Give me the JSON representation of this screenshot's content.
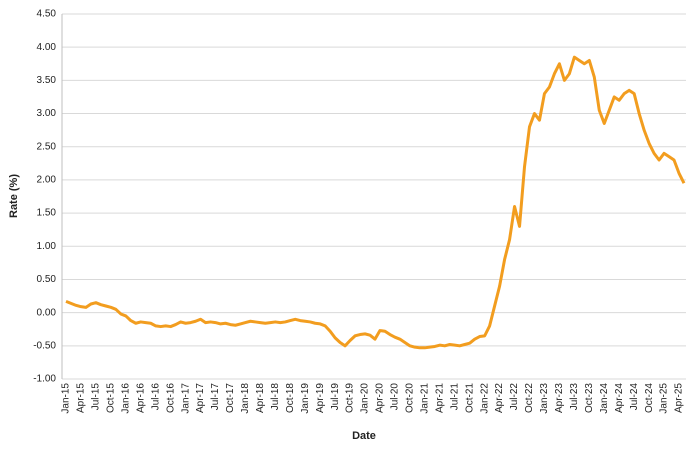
{
  "chart_data": {
    "type": "line",
    "x_label": "Date",
    "y_label": "Rate (%)",
    "categories": [
      "Jan-15",
      null,
      null,
      "Apr-15",
      null,
      null,
      "Jul-15",
      null,
      null,
      "Oct-15",
      null,
      null,
      "Jan-16",
      null,
      null,
      "Apr-16",
      null,
      null,
      "Jul-16",
      null,
      null,
      "Oct-16",
      null,
      null,
      "Jan-17",
      null,
      null,
      "Apr-17",
      null,
      null,
      "Jul-17",
      null,
      null,
      "Oct-17",
      null,
      null,
      "Jan-18",
      null,
      null,
      "Apr-18",
      null,
      null,
      "Jul-18",
      null,
      null,
      "Oct-18",
      null,
      null,
      "Jan-19",
      null,
      null,
      "Apr-19",
      null,
      null,
      "Jul-19",
      null,
      null,
      "Oct-19",
      null,
      null,
      "Jan-20",
      null,
      null,
      "Apr-20",
      null,
      null,
      "Jul-20",
      null,
      null,
      "Oct-20",
      null,
      null,
      "Jan-21",
      null,
      null,
      "Apr-21",
      null,
      null,
      "Jul-21",
      null,
      null,
      "Oct-21",
      null,
      null,
      "Jan-22",
      null,
      null,
      "Apr-22",
      null,
      null,
      "Jul-22",
      null,
      null,
      "Oct-22",
      null,
      null,
      "Jan-23",
      null,
      null,
      "Apr-23",
      null,
      null,
      "Jul-23",
      null,
      null,
      "Oct-23",
      null,
      null,
      "Jan-24",
      null,
      null,
      "Apr-24",
      null,
      null,
      "Jul-24",
      null,
      null,
      "Oct-24",
      null,
      null,
      "Jan-25",
      null,
      null,
      "Apr-25",
      null
    ],
    "values": [
      0.17,
      0.14,
      0.11,
      0.09,
      0.08,
      0.13,
      0.15,
      0.12,
      0.1,
      0.08,
      0.05,
      -0.02,
      -0.05,
      -0.12,
      -0.16,
      -0.14,
      -0.15,
      -0.16,
      -0.2,
      -0.21,
      -0.2,
      -0.21,
      -0.18,
      -0.14,
      -0.16,
      -0.15,
      -0.13,
      -0.1,
      -0.15,
      -0.14,
      -0.15,
      -0.17,
      -0.16,
      -0.18,
      -0.19,
      -0.17,
      -0.15,
      -0.13,
      -0.14,
      -0.15,
      -0.16,
      -0.15,
      -0.14,
      -0.15,
      -0.14,
      -0.12,
      -0.1,
      -0.12,
      -0.13,
      -0.14,
      -0.16,
      -0.17,
      -0.2,
      -0.28,
      -0.38,
      -0.45,
      -0.5,
      -0.42,
      -0.35,
      -0.33,
      -0.32,
      -0.34,
      -0.4,
      -0.27,
      -0.28,
      -0.33,
      -0.37,
      -0.4,
      -0.45,
      -0.5,
      -0.52,
      -0.53,
      -0.53,
      -0.52,
      -0.51,
      -0.49,
      -0.5,
      -0.48,
      -0.49,
      -0.5,
      -0.48,
      -0.46,
      -0.4,
      -0.36,
      -0.35,
      -0.2,
      0.1,
      0.4,
      0.8,
      1.1,
      1.6,
      1.3,
      2.2,
      2.8,
      3.0,
      2.9,
      3.3,
      3.4,
      3.6,
      3.75,
      3.5,
      3.6,
      3.85,
      3.8,
      3.75,
      3.8,
      3.55,
      3.05,
      2.85,
      3.05,
      3.25,
      3.2,
      3.3,
      3.35,
      3.3,
      3.0,
      2.75,
      2.55,
      2.4,
      2.3,
      2.4,
      2.35,
      2.3,
      2.1,
      1.95
    ],
    "color": "#f29d1f",
    "ylim": [
      -1,
      4.5
    ],
    "yticks": [
      {
        "value": -1,
        "label": "-1.00"
      },
      {
        "value": -0.5,
        "label": "-0.50"
      },
      {
        "value": 0,
        "label": "0.00"
      },
      {
        "value": 0.5,
        "label": "0.50"
      },
      {
        "value": 1,
        "label": "1.00"
      },
      {
        "value": 1.5,
        "label": "1.50"
      },
      {
        "value": 2,
        "label": "2.00"
      },
      {
        "value": 2.5,
        "label": "2.50"
      },
      {
        "value": 3,
        "label": "3.00"
      },
      {
        "value": 3.5,
        "label": "3.50"
      },
      {
        "value": 4,
        "label": "4.00"
      },
      {
        "value": 4.5,
        "label": "4.50"
      }
    ],
    "grid": true
  }
}
